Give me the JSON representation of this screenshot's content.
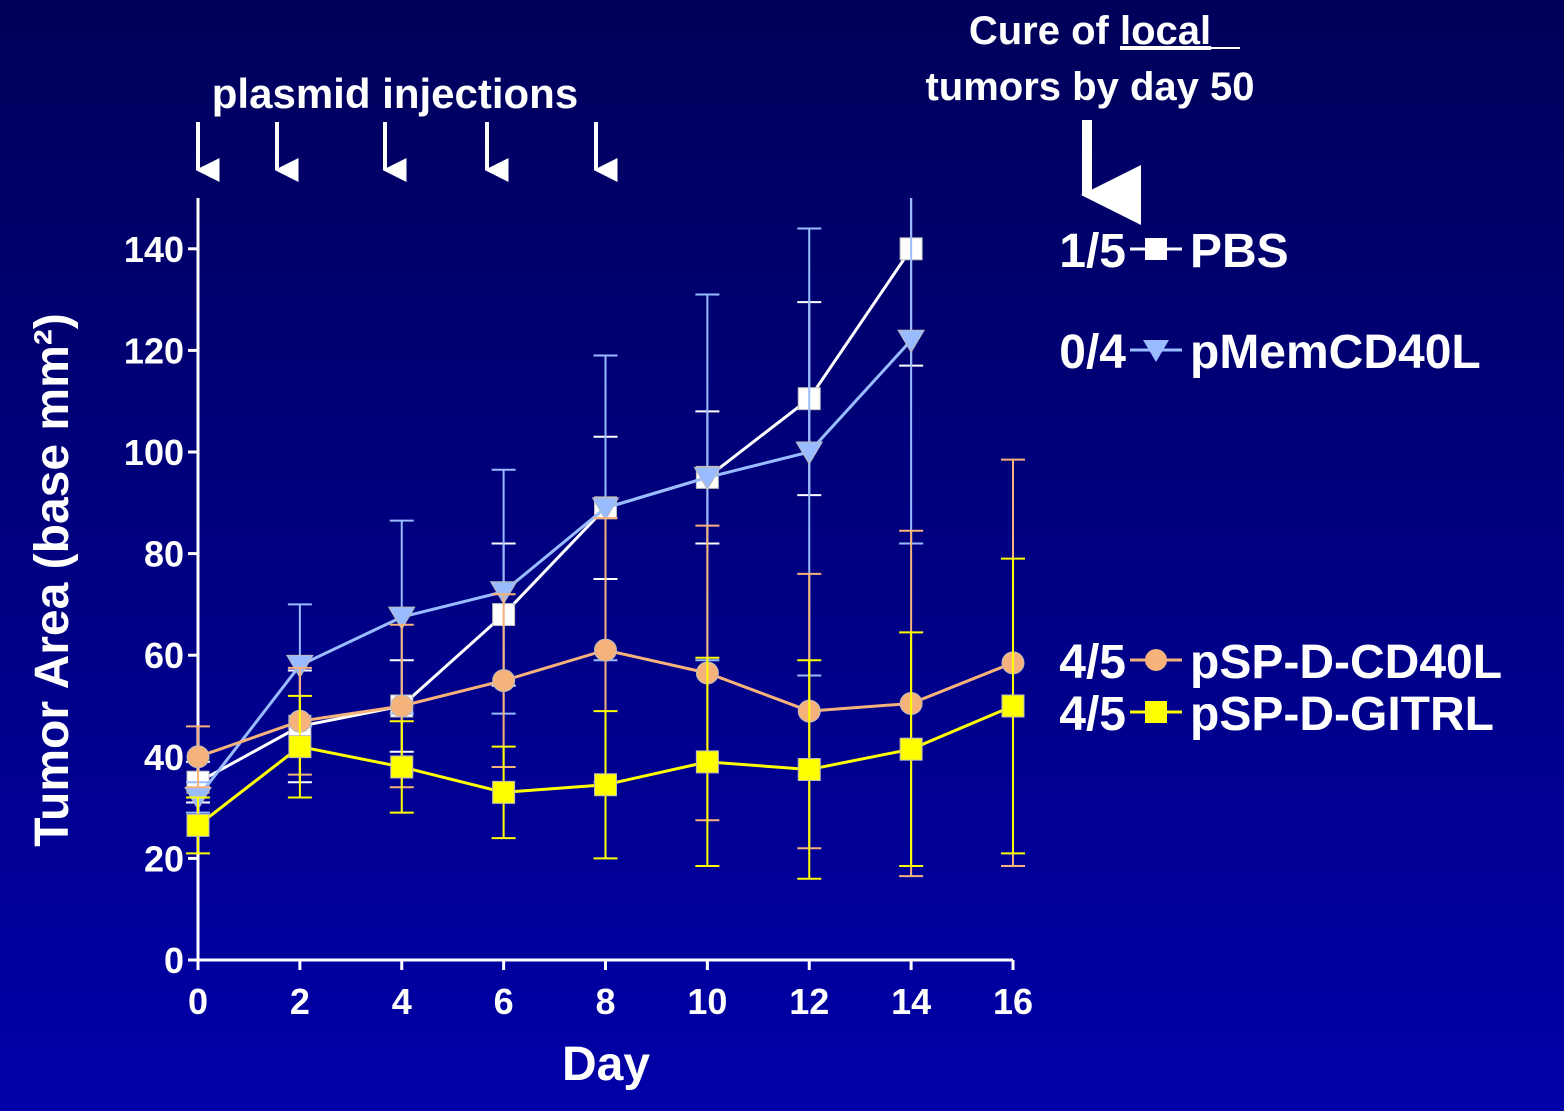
{
  "chart_data": {
    "type": "line",
    "x_label": "Day",
    "y_label": "Tumor Area (base mm²)",
    "annotations": {
      "injections": "plasmid injections",
      "cure_line1a": "Cure of ",
      "cure_line1b": "local",
      "cure_line2": "tumors by day 50"
    },
    "x": [
      0,
      2,
      4,
      6,
      8,
      10,
      12,
      14,
      16
    ],
    "xlim": [
      0,
      16
    ],
    "xticks": [
      0,
      2,
      4,
      6,
      8,
      10,
      12,
      14,
      16
    ],
    "ylim": [
      0,
      150
    ],
    "yticks": [
      0,
      20,
      40,
      60,
      80,
      100,
      120,
      140
    ],
    "series": [
      {
        "name": "PBS",
        "cure": "1/5",
        "color": "#ffffff",
        "marker": "square",
        "values": [
          35,
          46,
          50,
          68,
          89,
          95,
          110.5,
          140,
          null
        ],
        "errors": [
          4,
          11,
          9,
          14,
          14,
          13,
          19,
          23,
          null
        ]
      },
      {
        "name": "pMemCD40L",
        "cure": "0/4",
        "color": "#99bbff",
        "marker": "triangle",
        "values": [
          32,
          58,
          67.5,
          72.5,
          89,
          95,
          100,
          122,
          null
        ],
        "errors": [
          3,
          12,
          19,
          24,
          30,
          36,
          44,
          40,
          null
        ]
      },
      {
        "name": "pSP-D-CD40L",
        "cure": "4/5",
        "color": "#f5b27a",
        "marker": "circle",
        "values": [
          40,
          47,
          50,
          55,
          61,
          56.5,
          49,
          50.5,
          58.5
        ],
        "errors": [
          6,
          10.5,
          16,
          17,
          26,
          29,
          27,
          34,
          40
        ]
      },
      {
        "name": "pSP-D-GITRL",
        "cure": "4/5",
        "color": "#ffff00",
        "marker": "square",
        "values": [
          26.5,
          42,
          38,
          33,
          34.5,
          39,
          37.5,
          41.5,
          50
        ],
        "errors": [
          5.5,
          10,
          9,
          9,
          14.5,
          20.5,
          21.5,
          23,
          29
        ]
      }
    ]
  }
}
